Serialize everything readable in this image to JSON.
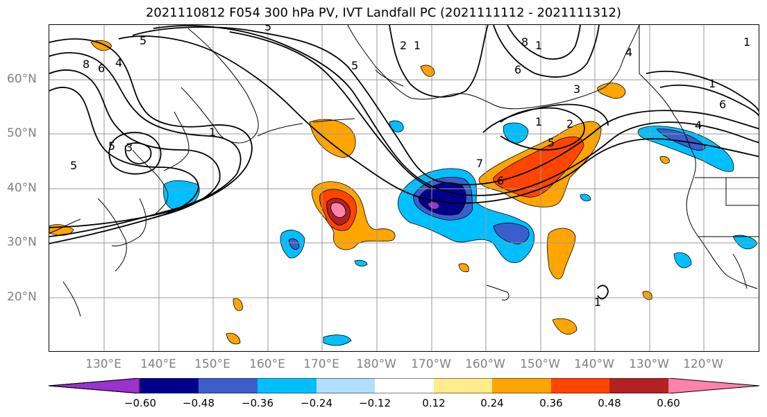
{
  "title": "2021110812 F054 300 hPa PV, IVT Landfall PC (2021111112 - 2021111312)",
  "lat_labels": [
    "60°N",
    "50°N",
    "40°N",
    "30°N",
    "20°N"
  ],
  "lon_labels": [
    "130°E",
    "140°E",
    "150°E",
    "160°E",
    "170°E",
    "180°W",
    "170°W",
    "160°W",
    "150°W",
    "140°W",
    "130°W",
    "120°W"
  ],
  "colorbar": {
    "ticks": [
      "−0.60",
      "−0.48",
      "−0.36",
      "−0.24",
      "−0.12",
      "0.12",
      "0.24",
      "0.36",
      "0.48",
      "0.60"
    ],
    "colors": [
      "#9a32cd",
      "#00008b",
      "#3a5fcd",
      "#00bfff",
      "#b2dfff",
      "#ffffff",
      "#ffec8b",
      "#ffa500",
      "#ff4500",
      "#b22222",
      "#ff82ab"
    ]
  },
  "contour_labels": [
    "8",
    "6",
    "4",
    "5",
    "2",
    "1",
    "7",
    "3",
    "6",
    "5",
    "1",
    "2",
    "4",
    "1",
    "6",
    "8",
    "1",
    "3",
    "5",
    "7",
    "6",
    "5",
    "6",
    "1"
  ]
}
